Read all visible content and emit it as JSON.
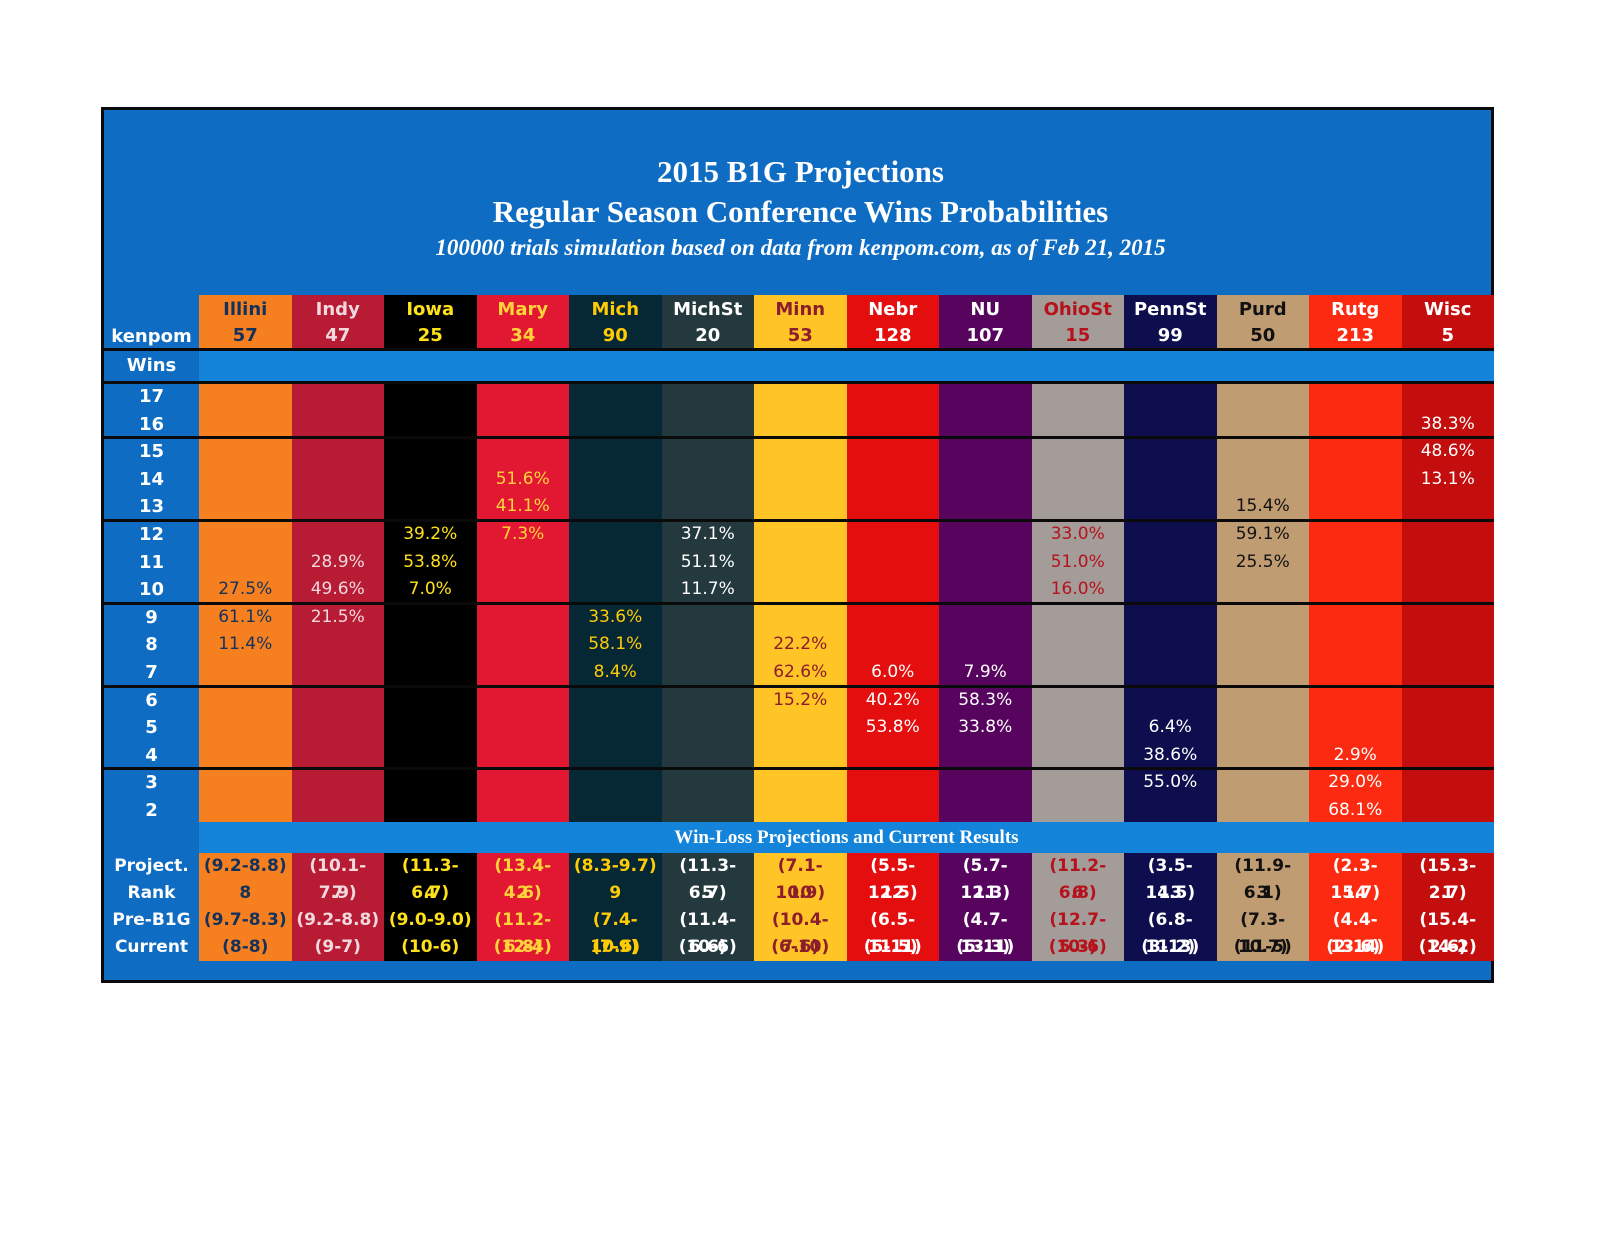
{
  "title": "2015 B1G Projections",
  "subtitle": "Regular Season Conference Wins Probabilities",
  "caption": "100000 trials simulation based on data from kenpom.com, as of Feb 21, 2015",
  "header_label": "kenpom",
  "wins_label": "Wins",
  "banner": "Win-Loss Projections and Current Results",
  "bottom_labels": [
    "Project.",
    "Rank",
    "Pre-B1G",
    "Current"
  ],
  "colors": {
    "panel": "#0E6CC2",
    "band": "#1484DA",
    "separator": "#0a0a0a"
  },
  "chart_data": {
    "type": "table",
    "wins": [
      17,
      16,
      15,
      14,
      13,
      12,
      11,
      10,
      9,
      8,
      7,
      6,
      5,
      4,
      3,
      2
    ],
    "teams": [
      {
        "name": "Illini",
        "kenpom": "57",
        "bg": "#F6801F",
        "fg": "#14315C",
        "probs": {
          "10": "27.5%",
          "9": "61.1%",
          "8": "11.4%"
        },
        "project": "(9.2-8.8)",
        "rank": "8",
        "pre": "(9.7-8.3)",
        "current": "(8-8)"
      },
      {
        "name": "Indy",
        "kenpom": "47",
        "bg": "#B71C34",
        "fg": "#F1D9DD",
        "probs": {
          "11": "28.9%",
          "10": "49.6%",
          "9": "21.5%"
        },
        "project": "(10.1-7.9)",
        "rank": "7",
        "pre": "(9.2-8.8)",
        "current": "(9-7)"
      },
      {
        "name": "Iowa",
        "kenpom": "25",
        "bg": "#000000",
        "fg": "#FFE11A",
        "probs": {
          "12": "39.2%",
          "11": "53.8%",
          "10": "7.0%"
        },
        "project": "(11.3-6.7)",
        "rank": "4",
        "pre": "(9.0-9.0)",
        "current": "(10-6)"
      },
      {
        "name": "Mary",
        "kenpom": "34",
        "bg": "#E21833",
        "fg": "#FFD43B",
        "probs": {
          "14": "51.6%",
          "13": "41.1%",
          "12": "7.3%"
        },
        "project": "(13.4-4.6)",
        "rank": "2",
        "pre": "(11.2-6.8)",
        "current": "(12-4)"
      },
      {
        "name": "Mich",
        "kenpom": "90",
        "bg": "#062835",
        "fg": "#FFCB05",
        "probs": {
          "9": "33.6%",
          "8": "58.1%",
          "7": "8.4%"
        },
        "project": "(8.3-9.7)",
        "rank": "9",
        "pre": "(7.4-10.6)",
        "current": "(7-9)"
      },
      {
        "name": "MichSt",
        "kenpom": "20",
        "bg": "#23393D",
        "fg": "#FFFFFF",
        "probs": {
          "12": "37.1%",
          "11": "51.1%",
          "10": "11.7%"
        },
        "project": "(11.3-6.7)",
        "rank": "5",
        "pre": "(11.4-6.6)",
        "current": "(10-6)"
      },
      {
        "name": "Minn",
        "kenpom": "53",
        "bg": "#FFC425",
        "fg": "#8C1D2C",
        "probs": {
          "8": "22.2%",
          "7": "62.6%",
          "6": "15.2%"
        },
        "project": "(7.1-10.9)",
        "rank": "10",
        "pre": "(10.4-7.6)",
        "current": "(6-10)"
      },
      {
        "name": "Nebr",
        "kenpom": "128",
        "bg": "#E40E0E",
        "fg": "#FFFFFF",
        "probs": {
          "7": "6.0%",
          "6": "40.2%",
          "5": "53.8%"
        },
        "project": "(5.5-12.5)",
        "rank": "12",
        "pre": "(6.5-11.5)",
        "current": "(5-11)"
      },
      {
        "name": "NU",
        "kenpom": "107",
        "bg": "#57045F",
        "fg": "#FFFFFF",
        "probs": {
          "7": "7.9%",
          "6": "58.3%",
          "5": "33.8%"
        },
        "project": "(5.7-12.3)",
        "rank": "11",
        "pre": "(4.7-13.3)",
        "current": "(5-11)"
      },
      {
        "name": "OhioSt",
        "kenpom": "15",
        "bg": "#A39C98",
        "fg": "#B5121B",
        "probs": {
          "12": "33.0%",
          "11": "51.0%",
          "10": "16.0%"
        },
        "project": "(11.2-6.8)",
        "rank": "6",
        "pre": "(12.7-5.3)",
        "current": "(10-6)"
      },
      {
        "name": "PennSt",
        "kenpom": "99",
        "bg": "#0E0E4E",
        "fg": "#FFFFFF",
        "probs": {
          "5": "6.4%",
          "4": "38.6%",
          "3": "55.0%"
        },
        "project": "(3.5-14.5)",
        "rank": "13",
        "pre": "(6.8-11.2)",
        "current": "(3-13)"
      },
      {
        "name": "Purd",
        "kenpom": "50",
        "bg": "#C09C72",
        "fg": "#111111",
        "probs": {
          "13": "15.4%",
          "12": "59.1%",
          "11": "25.5%"
        },
        "project": "(11.9-6.1)",
        "rank": "3",
        "pre": "(7.3-10.7)",
        "current": "(11-5)"
      },
      {
        "name": "Rutg",
        "kenpom": "213",
        "bg": "#FB2A10",
        "fg": "#FFFFFF",
        "probs": {
          "4": "2.9%",
          "3": "29.0%",
          "2": "68.1%"
        },
        "project": "(2.3-15.7)",
        "rank": "14",
        "pre": "(4.4-13.6)",
        "current": "(2-14)"
      },
      {
        "name": "Wisc",
        "kenpom": "5",
        "bg": "#C40D0D",
        "fg": "#FFFFFF",
        "probs": {
          "16": "38.3%",
          "15": "48.6%",
          "14": "13.1%"
        },
        "project": "(15.3-2.7)",
        "rank": "1",
        "pre": "(15.4-2.6)",
        "current": "(14-2)"
      }
    ]
  }
}
